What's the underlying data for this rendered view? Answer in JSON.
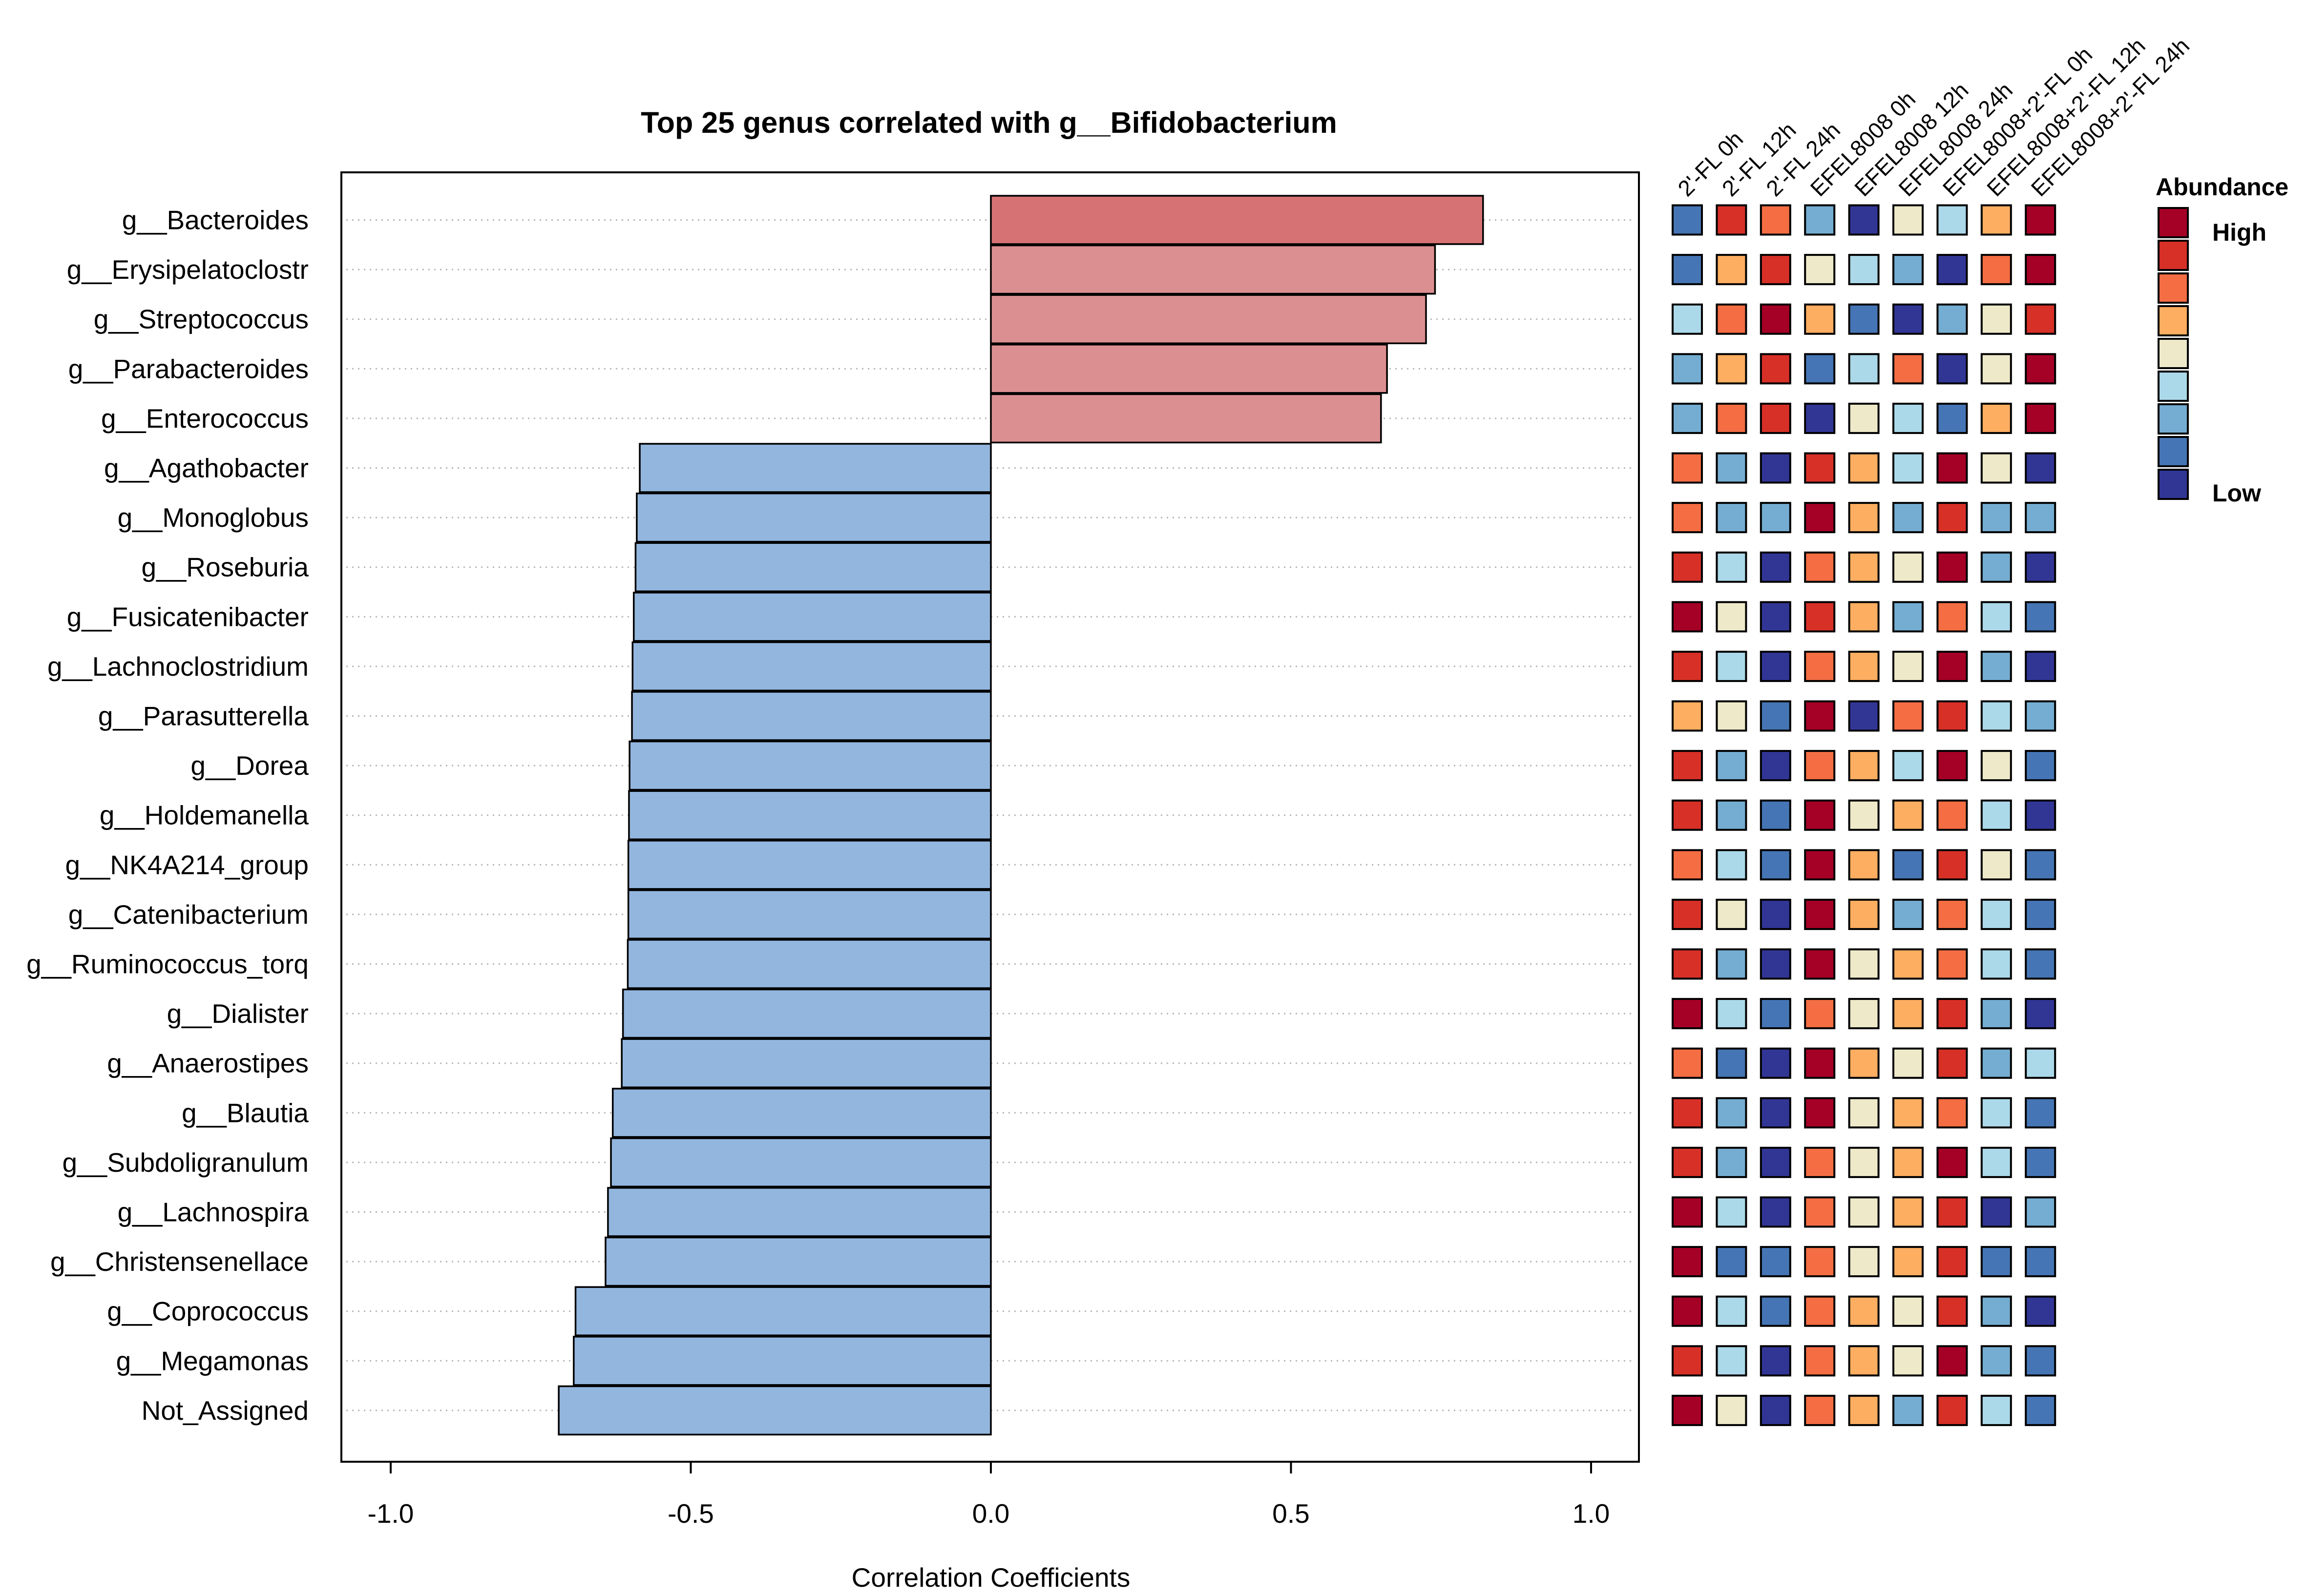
{
  "chart_data": {
    "type": "bar",
    "orientation": "horizontal",
    "title": "Top 25 genus correlated with g__Bifidobacterium",
    "xlabel": "Correlation Coefficients",
    "ylabel": "",
    "xlim": [
      -1.0,
      1.0
    ],
    "xticks": [
      -1.0,
      -0.5,
      0.0,
      0.5,
      1.0
    ],
    "xtick_labels": [
      "-1.0",
      "-0.5",
      "0.0",
      "0.5",
      "1.0"
    ],
    "grid": "dotted horizontal",
    "categories": [
      "g__Bacteroides",
      "g__Erysipelatoclostr",
      "g__Streptococcus",
      "g__Parabacteroides",
      "g__Enterococcus",
      "g__Agathobacter",
      "g__Monoglobus",
      "g__Roseburia",
      "g__Fusicatenibacter",
      "g__Lachnoclostridium",
      "g__Parasutterella",
      "g__Dorea",
      "g__Holdemanella",
      "g__NK4A214_group",
      "g__Catenibacterium",
      "g__Ruminococcus_torq",
      "g__Dialister",
      "g__Anaerostipes",
      "g__Blautia",
      "g__Subdoligranulum",
      "g__Lachnospira",
      "g__Christensenellace",
      "g__Coprococcus",
      "g__Megamonas",
      "Not_Assigned"
    ],
    "values": [
      0.82,
      0.74,
      0.725,
      0.66,
      0.65,
      -0.585,
      -0.59,
      -0.592,
      -0.595,
      -0.597,
      -0.598,
      -0.602,
      -0.603,
      -0.604,
      -0.604,
      -0.605,
      -0.613,
      -0.615,
      -0.63,
      -0.633,
      -0.638,
      -0.642,
      -0.692,
      -0.695,
      -0.72
    ],
    "bar_colors": [
      "#d77274",
      "#dc8f91",
      "#dc8f91",
      "#dc8f91",
      "#dc8f91",
      "#93b6de",
      "#93b6de",
      "#93b6de",
      "#93b6de",
      "#93b6de",
      "#93b6de",
      "#93b6de",
      "#93b6de",
      "#93b6de",
      "#93b6de",
      "#93b6de",
      "#93b6de",
      "#93b6de",
      "#93b6de",
      "#93b6de",
      "#93b6de",
      "#93b6de",
      "#93b6de",
      "#93b6de",
      "#93b6de"
    ],
    "heatmap": {
      "columns": [
        "2'-FL 0h",
        "2'-FL 12h",
        "2'-FL 24h",
        "EFEL8008 0h",
        "EFEL8008 12h",
        "EFEL8008 24h",
        "EFEL8008+2'-FL 0h",
        "EFEL8008+2'-FL 12h",
        "EFEL8008+2'-FL 24h"
      ],
      "palette": [
        "#313695",
        "#4575b4",
        "#74add1",
        "#abd9e9",
        "#eee9c8",
        "#fdae61",
        "#f46d43",
        "#d73027",
        "#a50026"
      ],
      "levels": [
        [
          1,
          7,
          6,
          2,
          0,
          4,
          3,
          5,
          8
        ],
        [
          1,
          5,
          7,
          4,
          3,
          2,
          0,
          6,
          8
        ],
        [
          3,
          6,
          8,
          5,
          1,
          0,
          2,
          4,
          7
        ],
        [
          2,
          5,
          7,
          1,
          3,
          6,
          0,
          4,
          8
        ],
        [
          2,
          6,
          7,
          0,
          4,
          3,
          1,
          5,
          8
        ],
        [
          6,
          2,
          0,
          7,
          5,
          3,
          8,
          4,
          0
        ],
        [
          6,
          2,
          2,
          8,
          5,
          2,
          7,
          2,
          2
        ],
        [
          7,
          3,
          0,
          6,
          5,
          4,
          8,
          2,
          0
        ],
        [
          8,
          4,
          0,
          7,
          5,
          2,
          6,
          3,
          1
        ],
        [
          7,
          3,
          0,
          6,
          5,
          4,
          8,
          2,
          0
        ],
        [
          5,
          4,
          1,
          8,
          0,
          6,
          7,
          3,
          2
        ],
        [
          7,
          2,
          0,
          6,
          5,
          3,
          8,
          4,
          1
        ],
        [
          7,
          2,
          1,
          8,
          4,
          5,
          6,
          3,
          0
        ],
        [
          6,
          3,
          1,
          8,
          5,
          1,
          7,
          4,
          1
        ],
        [
          7,
          4,
          0,
          8,
          5,
          2,
          6,
          3,
          1
        ],
        [
          7,
          2,
          0,
          8,
          4,
          5,
          6,
          3,
          1
        ],
        [
          8,
          3,
          1,
          6,
          4,
          5,
          7,
          2,
          0
        ],
        [
          6,
          1,
          0,
          8,
          5,
          4,
          7,
          2,
          3
        ],
        [
          7,
          2,
          0,
          8,
          4,
          5,
          6,
          3,
          1
        ],
        [
          7,
          2,
          0,
          6,
          4,
          5,
          8,
          3,
          1
        ],
        [
          8,
          3,
          0,
          6,
          4,
          5,
          7,
          0,
          2
        ],
        [
          8,
          1,
          1,
          6,
          4,
          5,
          7,
          1,
          1
        ],
        [
          8,
          3,
          1,
          6,
          5,
          4,
          7,
          2,
          0
        ],
        [
          7,
          3,
          0,
          6,
          5,
          4,
          8,
          2,
          1
        ],
        [
          8,
          4,
          0,
          6,
          5,
          2,
          7,
          3,
          1
        ]
      ]
    },
    "legend": {
      "title": "Abundance",
      "high_label": "High",
      "low_label": "Low",
      "position": "right"
    }
  }
}
